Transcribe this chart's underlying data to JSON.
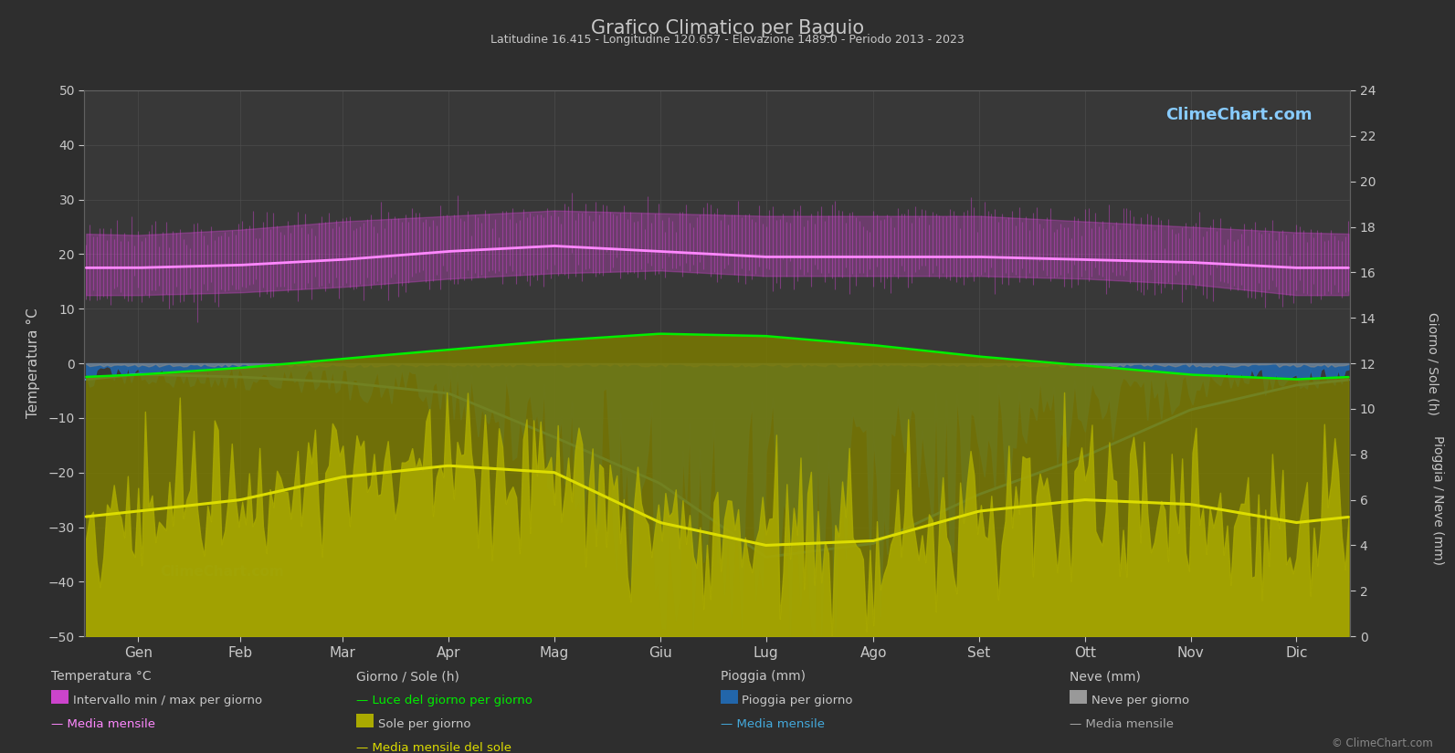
{
  "title": "Grafico Climatico per Baguio",
  "subtitle": "Latitudine 16.415 - Longitudine 120.657 - Elevazione 1489.0 - Periodo 2013 - 2023",
  "bg_color": "#2e2e2e",
  "plot_bg_color": "#383838",
  "grid_color": "#505050",
  "text_color": "#c8c8c8",
  "months": [
    "Gen",
    "Feb",
    "Mar",
    "Apr",
    "Mag",
    "Giu",
    "Lug",
    "Ago",
    "Set",
    "Ott",
    "Nov",
    "Dic"
  ],
  "ylabel_left": "Temperatura °C",
  "ylabel_right": "Giorno / Sole (h)                      Pioggia / Neve (mm)",
  "ylim_left": [
    -50,
    50
  ],
  "ylim_right": [
    0,
    24
  ],
  "temp_min_daily_monthly": [
    12.5,
    13.0,
    14.0,
    15.5,
    16.5,
    17.0,
    16.0,
    16.0,
    16.0,
    15.5,
    14.5,
    12.5
  ],
  "temp_max_daily_monthly": [
    23.5,
    24.5,
    26.0,
    27.0,
    28.0,
    27.5,
    27.0,
    27.0,
    27.0,
    26.0,
    25.0,
    24.0
  ],
  "temp_mean_monthly": [
    17.5,
    18.0,
    19.0,
    20.5,
    21.5,
    20.5,
    19.5,
    19.5,
    19.5,
    19.0,
    18.5,
    17.5
  ],
  "daylight_monthly": [
    11.5,
    11.8,
    12.2,
    12.6,
    13.0,
    13.3,
    13.2,
    12.8,
    12.3,
    11.9,
    11.5,
    11.3
  ],
  "sunshine_monthly": [
    5.5,
    6.0,
    7.0,
    7.5,
    7.2,
    5.0,
    4.0,
    4.2,
    5.5,
    6.0,
    5.8,
    5.0
  ],
  "rain_monthly_mm": [
    50,
    60,
    80,
    120,
    300,
    600,
    700,
    650,
    400,
    200,
    100,
    60
  ],
  "rain_mean_left": [
    -2.0,
    -2.5,
    -3.5,
    -5.5,
    -13.5,
    -22.0,
    -35.5,
    -33.0,
    -24.0,
    -17.0,
    -8.5,
    -4.0
  ],
  "logo_text": "ClimeChart.com",
  "copyright_text": "© ClimeChart.com",
  "legend_col1_title": "Temperatura °C",
  "legend_col2_title": "Giorno / Sole (h)",
  "legend_col3_title": "Pioggia (mm)",
  "legend_col4_title": "Neve (mm)",
  "legend_col1_items": [
    "Intervallo min / max per giorno",
    "Media mensile"
  ],
  "legend_col2_items": [
    "Luce del giorno per giorno",
    "Sole per giorno",
    "Media mensile del sole"
  ],
  "legend_col3_items": [
    "Pioggia per giorno",
    "Media mensile"
  ],
  "legend_col4_items": [
    "Neve per giorno",
    "Media mensile"
  ],
  "temp_color_fill": "#cc44cc",
  "daylight_color": "#00ee00",
  "sunshine_color_fill": "#999900",
  "sunshine_line_color": "#dddd00",
  "rain_color": "#2266aa",
  "rain_line_color": "#44aadd",
  "snow_color": "#888888",
  "temp_mean_color": "#ff88ff",
  "logo_color_top": "#88ccff",
  "logo_color_bot": "#44aaff"
}
